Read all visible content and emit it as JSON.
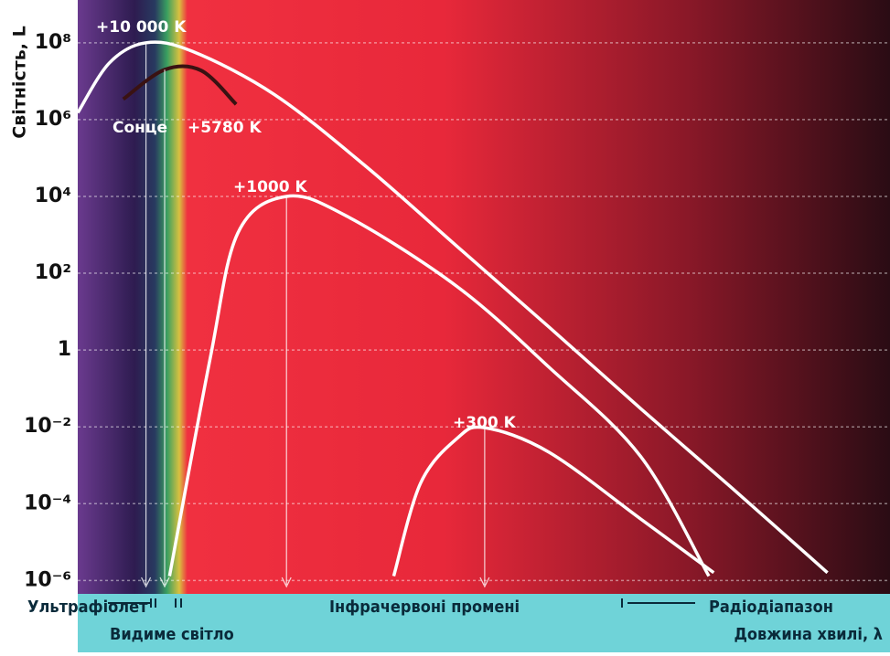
{
  "chart_data": {
    "type": "line",
    "ylabel": "Світність, L",
    "xlabel": "Довжина хвилі, λ",
    "log_y": true,
    "grid": true,
    "ylim": [
      5e-07,
      1300000000.0
    ],
    "xlim": [
      0,
      100
    ],
    "yticks": [
      {
        "value": 1e-06,
        "label": "10⁻⁶"
      },
      {
        "value": 0.0001,
        "label": "10⁻⁴"
      },
      {
        "value": 0.01,
        "label": "10⁻²"
      },
      1,
      {
        "value": 100,
        "label": "10²"
      },
      {
        "value": 10000,
        "label": "10⁴"
      },
      {
        "value": 1000000,
        "label": "10⁶"
      },
      {
        "value": 100000000,
        "label": "10⁸"
      }
    ],
    "regions": [
      "Ультрафіолет",
      "Видиме світло",
      "Інфрачервоні промені",
      "Радіодіапазон"
    ],
    "sun_label": "Сонце",
    "series": [
      {
        "name": "+10 000 K",
        "color": "#ffffff",
        "x": [
          0,
          3.9,
          8.4,
          14.1,
          24.2,
          35.5,
          46.7,
          58,
          69.3,
          80.5,
          92.3
        ],
        "values": [
          1500000,
          30000000,
          100000000,
          60000000,
          4500000,
          60000,
          500,
          4,
          0.03,
          0.00026,
          1.6e-06
        ]
      },
      {
        "name": "+5780 K",
        "color": "#3a1212",
        "x": [
          5.6,
          10.7,
          15.2,
          19.5
        ],
        "values": [
          3400000,
          20000000,
          19000000,
          2500000
        ]
      },
      {
        "name": "+1000 K",
        "color": "#ffffff",
        "x": [
          11.3,
          16.3,
          19.7,
          25.7,
          33.2,
          46.7,
          58,
          69.3,
          77.7
        ],
        "values": [
          1.3e-06,
          0.6,
          1100,
          10000,
          3000,
          45,
          0.36,
          0.0017,
          1.3e-06
        ]
      },
      {
        "name": "+300 K",
        "color": "#ffffff",
        "x": [
          38.9,
          42.2,
          46.7,
          50.1,
          58,
          69.3,
          78.3
        ],
        "values": [
          1.3e-06,
          0.00034,
          0.005,
          0.0095,
          0.0022,
          4e-05,
          1.6e-06
        ]
      }
    ]
  }
}
